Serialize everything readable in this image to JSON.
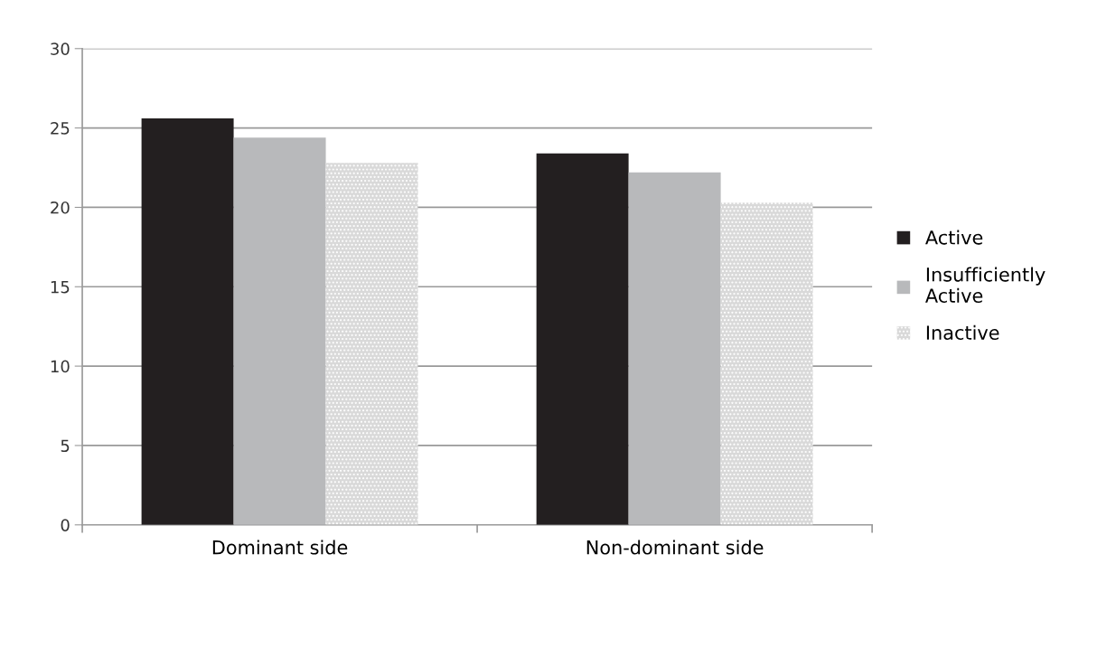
{
  "chart_data": {
    "type": "bar",
    "categories": [
      "Dominant side",
      "Non-dominant side"
    ],
    "series": [
      {
        "name": "Active",
        "color": "#231f20",
        "values": [
          25.6,
          23.4
        ]
      },
      {
        "name": "Insufficiently\nActive",
        "color": "#b8b9bb",
        "values": [
          24.4,
          22.2
        ]
      },
      {
        "name": "Inactive",
        "color": "#d9d9d9",
        "values": [
          22.8,
          20.3
        ]
      }
    ],
    "ylim": [
      0,
      30
    ],
    "yticks": [
      0,
      5,
      10,
      15,
      20,
      25,
      30
    ],
    "grid": "y",
    "legend": "right"
  }
}
